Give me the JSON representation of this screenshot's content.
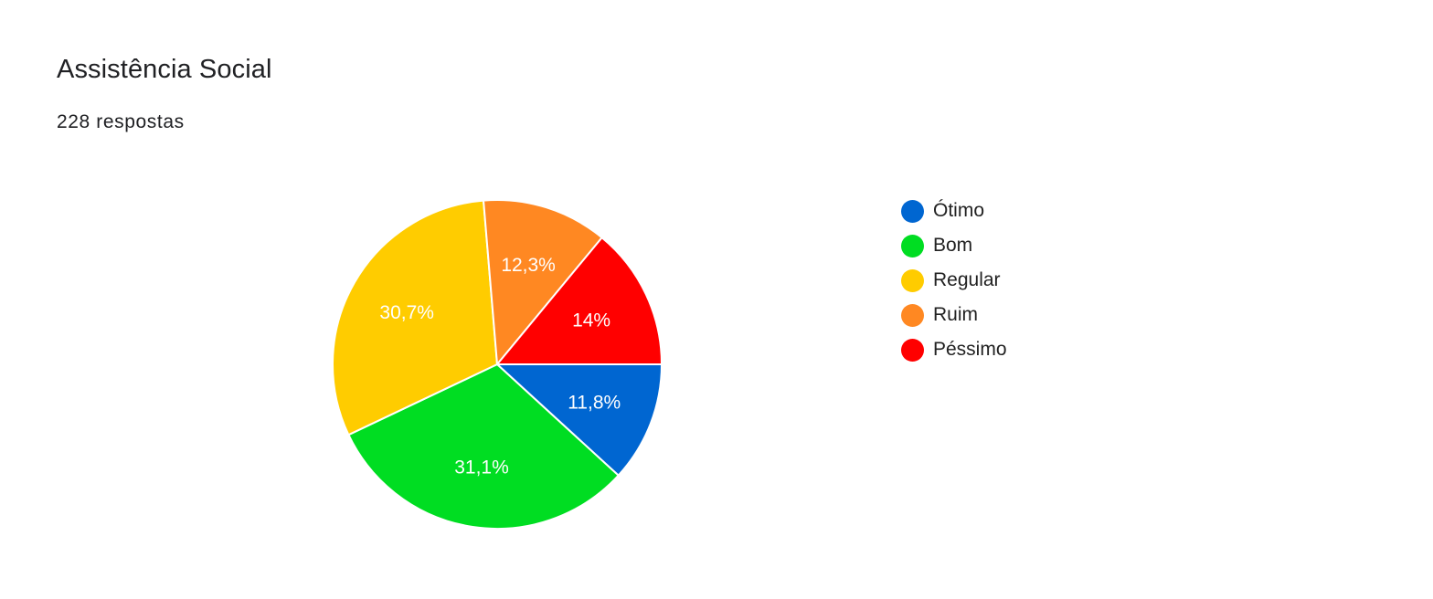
{
  "chart_data": {
    "type": "pie",
    "title": "Assistência Social",
    "subtitle": "228 respostas",
    "slices": [
      {
        "label": "Ótimo",
        "value": 11.8,
        "display": "11,8%",
        "color": "#0066d1"
      },
      {
        "label": "Bom",
        "value": 31.1,
        "display": "31,1%",
        "color": "#00dd22"
      },
      {
        "label": "Regular",
        "value": 30.7,
        "display": "30,7%",
        "color": "#ffcc00"
      },
      {
        "label": "Ruim",
        "value": 12.3,
        "display": "12,3%",
        "color": "#ff8822"
      },
      {
        "label": "Péssimo",
        "value": 14.0,
        "display": "14%",
        "color": "#ff0000"
      }
    ],
    "legend_position": "right"
  }
}
